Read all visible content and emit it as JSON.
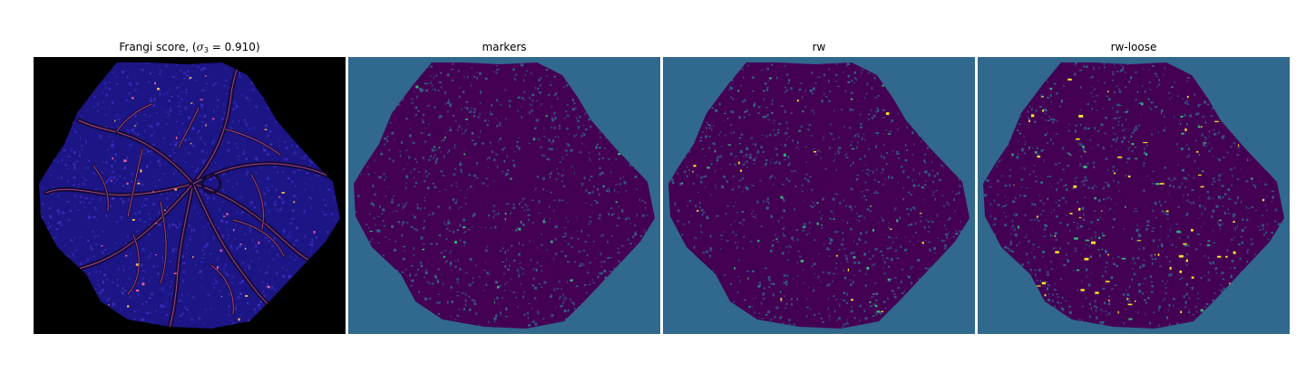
{
  "figure": {
    "panels": [
      {
        "id": "frangi",
        "title_prefix": "Frangi score, (",
        "title_symbol": "σ",
        "title_subscript": "3",
        "title_suffix": " = 0.910)",
        "background": "#000000",
        "fill": "#1c1585",
        "vessel": "#150a3a",
        "noise": "#3b2fbf",
        "highlight": "#e8609a",
        "highlight2": "#f3b75a"
      },
      {
        "id": "markers",
        "title": "markers",
        "background": "#31688e",
        "fill": "#440154",
        "vessel": "#440154",
        "noise": "#31688e",
        "highlight": "#35b779"
      },
      {
        "id": "rw",
        "title": "rw",
        "background": "#31688e",
        "fill": "#440154",
        "vessel": "#440154",
        "noise": "#31688e",
        "highlight": "#35b779",
        "highlight2": "#fde725"
      },
      {
        "id": "rw-loose",
        "title": "rw-loose",
        "background": "#31688e",
        "fill": "#440154",
        "vessel": "#440154",
        "noise": "#31688e",
        "highlight": "#fde725",
        "highlight2": "#35b779"
      }
    ]
  }
}
